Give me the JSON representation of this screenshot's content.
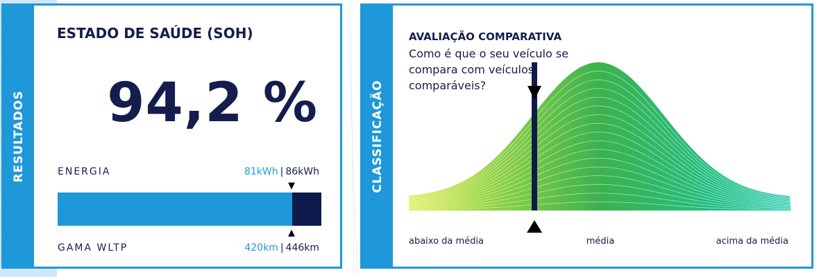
{
  "results_panel": {
    "tab_label": "RESULTADOS",
    "title": "ESTADO DE SAÚDE (SOH)",
    "soh_value": "94,2 %",
    "energy": {
      "label": "ENERGIA",
      "current": "81kWh",
      "separator": "|",
      "nominal": "86kWh",
      "fraction": 0.942
    },
    "range": {
      "label": "GAMA WLTP",
      "current": "420km",
      "separator": "|",
      "nominal": "446km"
    }
  },
  "comparison_panel": {
    "tab_label": "CLASSIFICAÇÃO",
    "title": "AVALIAÇÃO COMPARATIVA",
    "question": "Como é que o seu veículo se compara com veículos comparáveis?",
    "axis_labels": {
      "below": "abaixo da média",
      "average": "média",
      "above": "acima da média"
    },
    "vehicle_position": 0.33
  },
  "colors": {
    "accent_blue": "#1e98d9",
    "navy": "#141d4e",
    "bar_remaining": "#0f1a4c",
    "curve_start": "#d8ec3c",
    "curve_mid": "#3cb24e",
    "curve_end": "#12c7a6"
  }
}
